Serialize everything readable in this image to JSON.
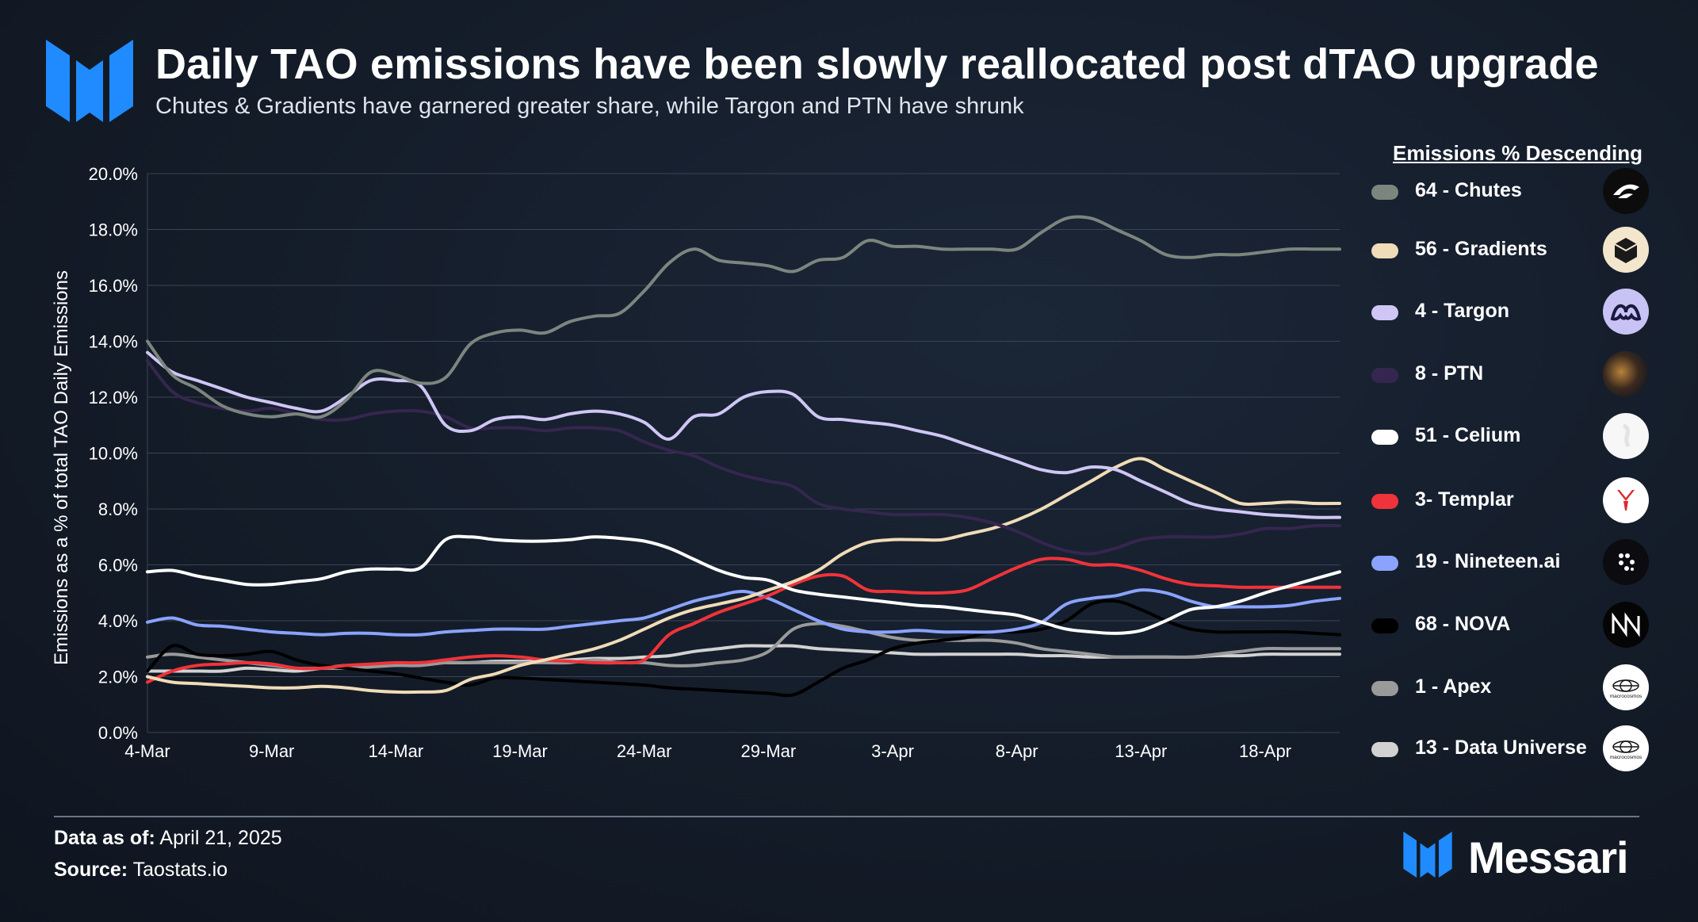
{
  "header": {
    "title": "Daily TAO emissions have been slowly reallocated post dTAO upgrade",
    "subtitle": "Chutes & Gradients have garnered greater share, while Targon and PTN have shrunk"
  },
  "footer": {
    "data_as_of_label": "Data as of:",
    "data_as_of_value": "April 21, 2025",
    "source_label": "Source:",
    "source_value": "Taostats.io",
    "brand": "Messari"
  },
  "colors": {
    "accent": "#1f8bff",
    "grid": "#3a4454",
    "axis_text": "#ffffff"
  },
  "legend": {
    "title": "Emissions % Descending",
    "items": [
      {
        "label": "64 - Chutes",
        "color": "#7c857e",
        "icon": "chutes-icon"
      },
      {
        "label": "56 - Gradients",
        "color": "#f0dcb8",
        "icon": "gradients-icon"
      },
      {
        "label": "4 - Targon",
        "color": "#cfc6f5",
        "icon": "targon-icon"
      },
      {
        "label": "8 - PTN",
        "color": "#35264f",
        "icon": "ptn-icon"
      },
      {
        "label": "51 - Celium",
        "color": "#ffffff",
        "icon": "celium-icon"
      },
      {
        "label": "3- Templar",
        "color": "#f0333a",
        "icon": "templar-icon"
      },
      {
        "label": "19 - Nineteen.ai",
        "color": "#8aa3ff",
        "icon": "nineteen-icon"
      },
      {
        "label": "68 - NOVA",
        "color": "#000000",
        "icon": "nova-icon"
      },
      {
        "label": "1 - Apex",
        "color": "#9a9a9a",
        "icon": "macrocosmos-icon"
      },
      {
        "label": "13 - Data Universe",
        "color": "#d2d2d2",
        "icon": "macrocosmos-icon"
      }
    ],
    "badge_text": "macrocosmos"
  },
  "chart_data": {
    "type": "line",
    "ylabel": "Emissions as a % of total TAO Daily Emissions",
    "ylim": [
      0,
      20
    ],
    "yticks": [
      "0.0%",
      "2.0%",
      "4.0%",
      "6.0%",
      "8.0%",
      "10.0%",
      "12.0%",
      "14.0%",
      "16.0%",
      "18.0%",
      "20.0%"
    ],
    "xticks": [
      "4-Mar",
      "9-Mar",
      "14-Mar",
      "19-Mar",
      "24-Mar",
      "29-Mar",
      "3-Apr",
      "8-Apr",
      "13-Apr",
      "18-Apr"
    ],
    "x": [
      "2025-03-04",
      "2025-03-05",
      "2025-03-06",
      "2025-03-07",
      "2025-03-08",
      "2025-03-09",
      "2025-03-10",
      "2025-03-11",
      "2025-03-12",
      "2025-03-13",
      "2025-03-14",
      "2025-03-15",
      "2025-03-16",
      "2025-03-17",
      "2025-03-18",
      "2025-03-19",
      "2025-03-20",
      "2025-03-21",
      "2025-03-22",
      "2025-03-23",
      "2025-03-24",
      "2025-03-25",
      "2025-03-26",
      "2025-03-27",
      "2025-03-28",
      "2025-03-29",
      "2025-03-30",
      "2025-03-31",
      "2025-04-01",
      "2025-04-02",
      "2025-04-03",
      "2025-04-04",
      "2025-04-05",
      "2025-04-06",
      "2025-04-07",
      "2025-04-08",
      "2025-04-09",
      "2025-04-10",
      "2025-04-11",
      "2025-04-12",
      "2025-04-13",
      "2025-04-14",
      "2025-04-15",
      "2025-04-16",
      "2025-04-17",
      "2025-04-18",
      "2025-04-19",
      "2025-04-20",
      "2025-04-21"
    ],
    "grid": true,
    "legend_position": "right",
    "series": [
      {
        "name": "64 - Chutes",
        "color": "#7c857e",
        "values": [
          14.0,
          12.8,
          12.3,
          11.7,
          11.4,
          11.3,
          11.4,
          11.3,
          11.9,
          12.9,
          12.8,
          12.5,
          12.7,
          13.9,
          14.3,
          14.4,
          14.3,
          14.7,
          14.9,
          15.0,
          15.8,
          16.8,
          17.3,
          16.9,
          16.8,
          16.7,
          16.5,
          16.9,
          17.0,
          17.6,
          17.4,
          17.4,
          17.3,
          17.3,
          17.3,
          17.3,
          17.9,
          18.4,
          18.4,
          18.0,
          17.6,
          17.1,
          17.0,
          17.1,
          17.1,
          17.2,
          17.3,
          17.3,
          17.3
        ]
      },
      {
        "name": "4 - Targon",
        "color": "#cfc6f5",
        "values": [
          13.6,
          12.9,
          12.6,
          12.3,
          12.0,
          11.8,
          11.6,
          11.5,
          12.0,
          12.6,
          12.6,
          12.4,
          11.0,
          10.8,
          11.2,
          11.3,
          11.2,
          11.4,
          11.5,
          11.4,
          11.1,
          10.5,
          11.3,
          11.4,
          12.0,
          12.2,
          12.1,
          11.3,
          11.2,
          11.1,
          11.0,
          10.8,
          10.6,
          10.3,
          10.0,
          9.7,
          9.4,
          9.3,
          9.5,
          9.4,
          9.0,
          8.6,
          8.2,
          8.0,
          7.9,
          7.8,
          7.75,
          7.7,
          7.7
        ]
      },
      {
        "name": "8 - PTN",
        "color": "#35264f",
        "values": [
          13.3,
          12.2,
          11.8,
          11.6,
          11.5,
          11.6,
          11.4,
          11.2,
          11.2,
          11.4,
          11.5,
          11.5,
          11.3,
          10.9,
          10.9,
          10.9,
          10.8,
          10.9,
          10.9,
          10.8,
          10.4,
          10.1,
          9.9,
          9.5,
          9.2,
          9.0,
          8.8,
          8.2,
          8.0,
          7.9,
          7.8,
          7.8,
          7.8,
          7.7,
          7.5,
          7.2,
          6.8,
          6.5,
          6.4,
          6.6,
          6.9,
          7.0,
          7.0,
          7.0,
          7.1,
          7.3,
          7.3,
          7.4,
          7.4
        ]
      },
      {
        "name": "51 - Celium",
        "color": "#ffffff",
        "values": [
          5.75,
          5.8,
          5.6,
          5.45,
          5.3,
          5.3,
          5.4,
          5.5,
          5.75,
          5.85,
          5.85,
          5.9,
          6.9,
          7.0,
          6.9,
          6.85,
          6.85,
          6.9,
          7.0,
          6.95,
          6.85,
          6.6,
          6.2,
          5.8,
          5.55,
          5.45,
          5.1,
          4.95,
          4.85,
          4.75,
          4.65,
          4.55,
          4.5,
          4.4,
          4.3,
          4.2,
          3.95,
          3.7,
          3.6,
          3.55,
          3.65,
          4.0,
          4.4,
          4.5,
          4.7,
          5.0,
          5.25,
          5.5,
          5.75
        ]
      },
      {
        "name": "56 - Gradients",
        "color": "#f0dcb8",
        "values": [
          2.0,
          1.8,
          1.75,
          1.7,
          1.65,
          1.6,
          1.6,
          1.65,
          1.6,
          1.5,
          1.45,
          1.45,
          1.5,
          1.9,
          2.1,
          2.4,
          2.6,
          2.8,
          3.0,
          3.3,
          3.7,
          4.1,
          4.4,
          4.6,
          4.8,
          5.1,
          5.4,
          5.8,
          6.4,
          6.8,
          6.9,
          6.9,
          6.9,
          7.1,
          7.3,
          7.6,
          8.0,
          8.5,
          9.0,
          9.5,
          9.8,
          9.4,
          9.0,
          8.6,
          8.2,
          8.2,
          8.25,
          8.2,
          8.2
        ]
      },
      {
        "name": "3- Templar",
        "color": "#f0333a",
        "values": [
          1.8,
          2.2,
          2.4,
          2.45,
          2.5,
          2.45,
          2.3,
          2.3,
          2.4,
          2.45,
          2.5,
          2.5,
          2.6,
          2.7,
          2.75,
          2.7,
          2.6,
          2.55,
          2.5,
          2.5,
          2.6,
          3.5,
          3.9,
          4.3,
          4.6,
          4.9,
          5.3,
          5.6,
          5.6,
          5.1,
          5.05,
          5.0,
          5.0,
          5.1,
          5.5,
          5.9,
          6.2,
          6.2,
          6.0,
          6.0,
          5.8,
          5.5,
          5.3,
          5.25,
          5.2,
          5.2,
          5.2,
          5.2,
          5.2
        ]
      },
      {
        "name": "19 - Nineteen.ai",
        "color": "#8aa3ff",
        "values": [
          3.95,
          4.1,
          3.85,
          3.8,
          3.7,
          3.6,
          3.55,
          3.5,
          3.55,
          3.55,
          3.5,
          3.5,
          3.6,
          3.65,
          3.7,
          3.7,
          3.7,
          3.8,
          3.9,
          4.0,
          4.1,
          4.4,
          4.7,
          4.9,
          5.05,
          4.8,
          4.4,
          4.0,
          3.7,
          3.6,
          3.6,
          3.65,
          3.6,
          3.6,
          3.6,
          3.7,
          3.95,
          4.6,
          4.8,
          4.9,
          5.1,
          5.0,
          4.7,
          4.5,
          4.5,
          4.5,
          4.55,
          4.7,
          4.8
        ]
      },
      {
        "name": "68 - NOVA",
        "color": "#000000",
        "values": [
          2.2,
          3.1,
          2.8,
          2.75,
          2.8,
          2.9,
          2.6,
          2.4,
          2.3,
          2.2,
          2.1,
          1.95,
          1.8,
          1.7,
          1.95,
          1.95,
          1.9,
          1.85,
          1.8,
          1.75,
          1.7,
          1.6,
          1.55,
          1.5,
          1.45,
          1.4,
          1.35,
          1.8,
          2.3,
          2.6,
          3.0,
          3.2,
          3.3,
          3.4,
          3.6,
          3.6,
          3.7,
          4.0,
          4.6,
          4.7,
          4.4,
          4.0,
          3.7,
          3.6,
          3.6,
          3.6,
          3.6,
          3.55,
          3.5
        ]
      },
      {
        "name": "1 - Apex",
        "color": "#9a9a9a",
        "values": [
          2.7,
          2.8,
          2.7,
          2.6,
          2.5,
          2.4,
          2.3,
          2.3,
          2.3,
          2.35,
          2.4,
          2.4,
          2.5,
          2.5,
          2.5,
          2.5,
          2.5,
          2.5,
          2.6,
          2.5,
          2.5,
          2.4,
          2.4,
          2.5,
          2.6,
          2.9,
          3.7,
          3.9,
          3.8,
          3.6,
          3.4,
          3.3,
          3.3,
          3.3,
          3.3,
          3.2,
          3.0,
          2.9,
          2.8,
          2.7,
          2.7,
          2.7,
          2.7,
          2.8,
          2.9,
          3.0,
          3.0,
          3.0,
          3.0
        ]
      },
      {
        "name": "13 - Data Universe",
        "color": "#d2d2d2",
        "values": [
          2.2,
          2.2,
          2.2,
          2.2,
          2.3,
          2.25,
          2.2,
          2.3,
          2.4,
          2.4,
          2.45,
          2.5,
          2.5,
          2.5,
          2.55,
          2.55,
          2.55,
          2.6,
          2.65,
          2.65,
          2.7,
          2.75,
          2.9,
          3.0,
          3.1,
          3.1,
          3.1,
          3.0,
          2.95,
          2.9,
          2.85,
          2.8,
          2.8,
          2.8,
          2.8,
          2.8,
          2.75,
          2.75,
          2.7,
          2.7,
          2.7,
          2.7,
          2.7,
          2.75,
          2.75,
          2.8,
          2.8,
          2.8,
          2.8
        ]
      }
    ]
  }
}
